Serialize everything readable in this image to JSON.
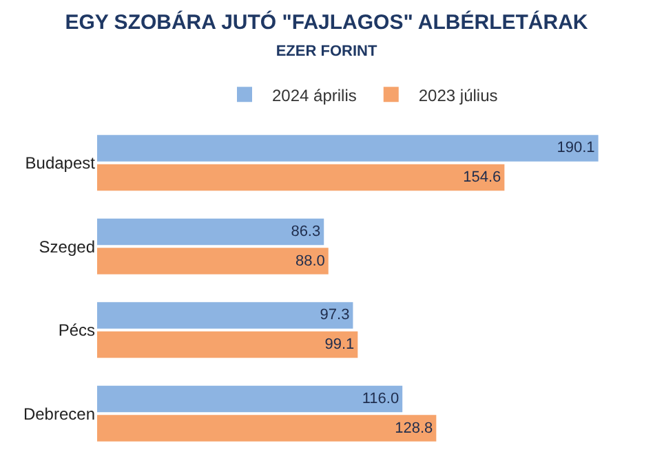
{
  "chart_data": {
    "type": "bar",
    "orientation": "horizontal",
    "title": "EGY SZOBÁRA JUTÓ \"FAJLAGOS\" ALBÉRLETÁRAK",
    "subtitle": "EZER FORINT",
    "categories": [
      "Budapest",
      "Szeged",
      "Pécs",
      "Debrecen"
    ],
    "series": [
      {
        "name": "2024 április",
        "color": "#8db4e2",
        "values": [
          190.1,
          86.3,
          97.3,
          116.0
        ],
        "value_labels": [
          "190.1",
          "86.3",
          "97.3",
          "116.0"
        ]
      },
      {
        "name": "2023 július",
        "color": "#f6a36b",
        "values": [
          154.6,
          88.0,
          99.1,
          128.8
        ],
        "value_labels": [
          "154.6",
          "88.0",
          "99.1",
          "128.8"
        ]
      }
    ],
    "legend": "top",
    "tick_labels": "y",
    "grid": false
  }
}
